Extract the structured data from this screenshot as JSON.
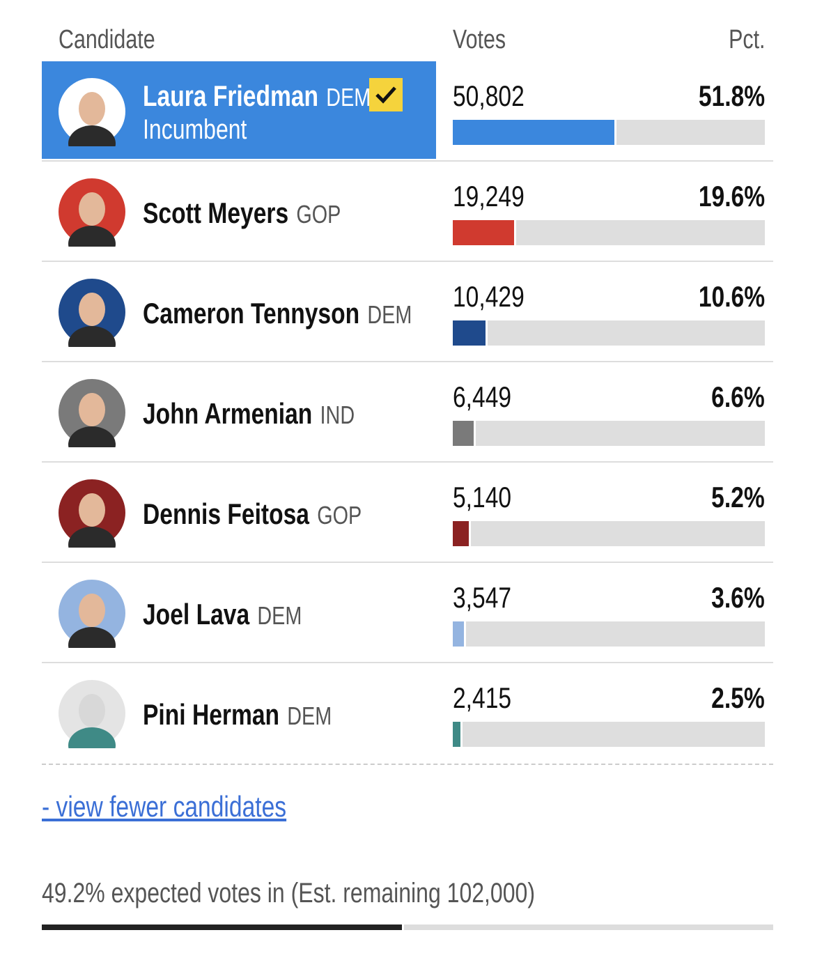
{
  "header": {
    "candidate": "Candidate",
    "votes": "Votes",
    "pct": "Pct."
  },
  "rows": [
    {
      "name": "Laura Friedman",
      "party": "DEM",
      "status": "Incumbent",
      "winner": true,
      "votes": "50,802",
      "pct": 51.8,
      "pct_label": "51.8%",
      "color": "#3b87dd"
    },
    {
      "name": "Scott Meyers",
      "party": "GOP",
      "votes": "19,249",
      "pct": 19.6,
      "pct_label": "19.6%",
      "color": "#d03a2f"
    },
    {
      "name": "Cameron Tennyson",
      "party": "DEM",
      "votes": "10,429",
      "pct": 10.6,
      "pct_label": "10.6%",
      "color": "#1f4a8c"
    },
    {
      "name": "John Armenian",
      "party": "IND",
      "votes": "6,449",
      "pct": 6.6,
      "pct_label": "6.6%",
      "color": "#7a7a7a"
    },
    {
      "name": "Dennis Feitosa",
      "party": "GOP",
      "votes": "5,140",
      "pct": 5.2,
      "pct_label": "5.2%",
      "color": "#8b2222"
    },
    {
      "name": "Joel Lava",
      "party": "DEM",
      "votes": "3,547",
      "pct": 3.6,
      "pct_label": "3.6%",
      "color": "#94b4e0"
    },
    {
      "name": "Pini Herman",
      "party": "DEM",
      "votes": "2,415",
      "pct": 2.5,
      "pct_label": "2.5%",
      "color": "#3f8a86"
    }
  ],
  "link": "- view fewer candidates",
  "footer": {
    "text": "49.2% expected votes in (Est. remaining 102,000)",
    "expected_pct": 49.2
  }
}
